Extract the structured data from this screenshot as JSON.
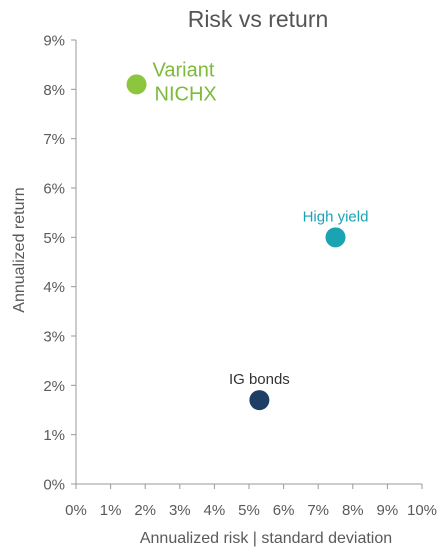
{
  "chart_data": {
    "type": "scatter",
    "title": "Risk vs return",
    "xlabel": "Annualized risk | standard deviation",
    "ylabel": "Annualized return",
    "xlim": [
      0,
      10
    ],
    "ylim": [
      0,
      9
    ],
    "x_ticks": [
      "0%",
      "1%",
      "2%",
      "3%",
      "4%",
      "5%",
      "6%",
      "7%",
      "8%",
      "9%",
      "10%"
    ],
    "y_ticks": [
      "0%",
      "1%",
      "2%",
      "3%",
      "4%",
      "5%",
      "6%",
      "7%",
      "8%",
      "9%"
    ],
    "grid": false,
    "points": [
      {
        "label_lines": [
          "Variant",
          "NICHX"
        ],
        "x": 1.75,
        "y": 8.1,
        "color": "#8cc63f",
        "label_color": "#7cba3a",
        "label_position": "right",
        "label_size": "large"
      },
      {
        "label_lines": [
          "High yield"
        ],
        "x": 7.5,
        "y": 5.0,
        "color": "#1aa3b3",
        "label_color": "#1aa3b3",
        "label_position": "above",
        "label_size": "small"
      },
      {
        "label_lines": [
          "IG bonds"
        ],
        "x": 5.3,
        "y": 1.7,
        "color": "#1d3f66",
        "label_color": "#333333",
        "label_position": "above",
        "label_size": "small"
      }
    ]
  }
}
